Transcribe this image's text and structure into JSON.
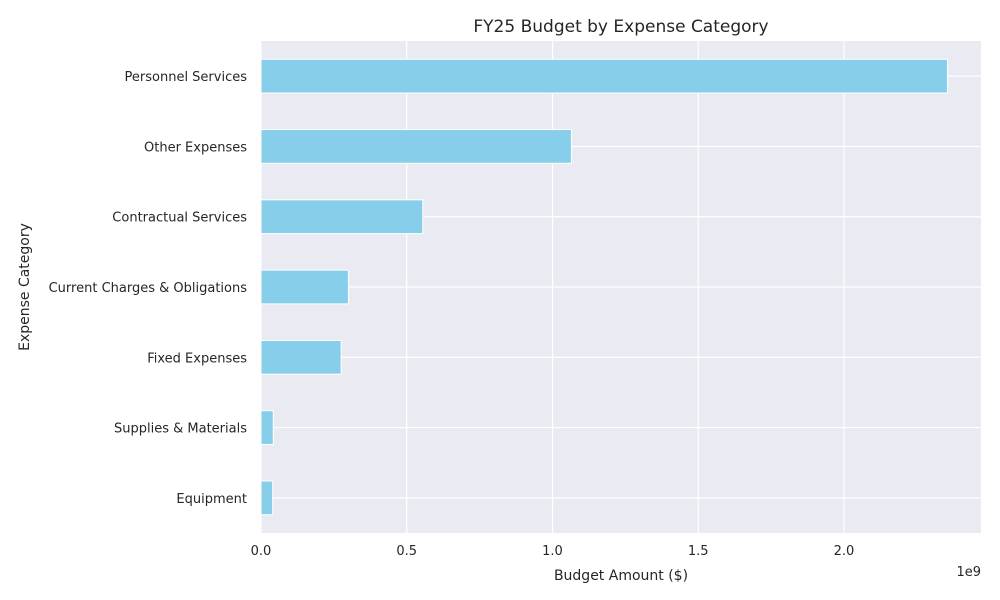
{
  "chart_data": {
    "type": "bar",
    "orientation": "horizontal",
    "title": "FY25 Budget by Expense Category",
    "xlabel": "Budget Amount ($)",
    "ylabel": "Expense Category",
    "x_scale_offset_label": "1e9",
    "xlim": [
      0,
      2.47
    ],
    "x_ticks": [
      0.0,
      0.5,
      1.0,
      1.5,
      2.0
    ],
    "x_tick_labels": [
      "0.0",
      "0.5",
      "1.0",
      "1.5",
      "2.0"
    ],
    "categories": [
      "Personnel Services",
      "Other Expenses",
      "Contractual Services",
      "Current Charges & Obligations",
      "Fixed Expenses",
      "Supplies & Materials",
      "Equipment"
    ],
    "values": [
      2.355,
      1.065,
      0.555,
      0.3,
      0.275,
      0.042,
      0.04
    ],
    "grid": true,
    "colors": {
      "bar": "#87CEEB",
      "plot_background": "#EAEAF2",
      "grid": "#FFFFFF",
      "text": "#262626"
    }
  }
}
